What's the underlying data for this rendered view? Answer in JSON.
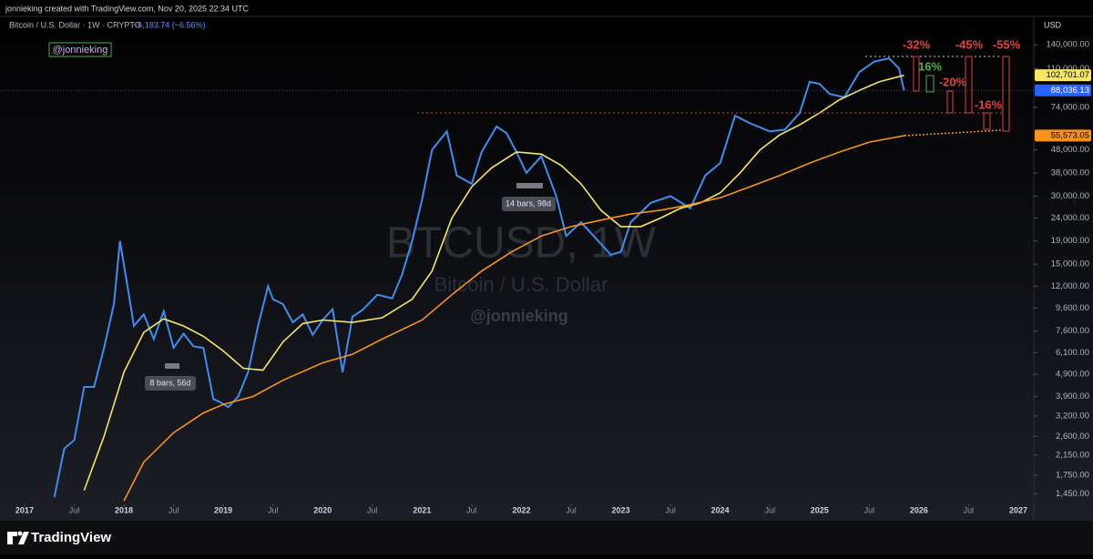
{
  "chart_data": {
    "type": "line",
    "header": "jonnieking created with TradingView.com, Nov 20, 2025 22:34 UTC",
    "symbol_title": "Bitcoin / U.S. Dollar · 1W · CRYPTO",
    "change": "−6,183.74 (−6.56%)",
    "currency": "USD",
    "author_tag": "@jonnieking",
    "watermark": [
      "BTCUSD, 1W",
      "Bitcoin / U.S. Dollar",
      "@jonnieking"
    ],
    "annotations": [
      "-32%",
      "16%",
      "-20%",
      "-45%",
      "-16%",
      "-55%",
      "14 bars, 98d",
      "8 bars, 56d"
    ],
    "footer": "TradingView",
    "log_scale": true,
    "xlim": [
      2016.753,
      2027.156
    ],
    "xticks": [
      2017,
      {
        "value": 2017.5,
        "label": "Jul"
      },
      2018,
      {
        "value": 2018.5,
        "label": "Jul"
      },
      2019,
      {
        "value": 2019.5,
        "label": "Jul"
      },
      2020,
      {
        "value": 2020.5,
        "label": "Jul"
      },
      2021,
      {
        "value": 2021.5,
        "label": "Jul"
      },
      2022,
      {
        "value": 2022.5,
        "label": "Jul"
      },
      2023,
      {
        "value": 2023.5,
        "label": "Jul"
      },
      2024,
      {
        "value": 2024.5,
        "label": "Jul"
      },
      2025,
      {
        "value": 2025.5,
        "label": "Jul"
      },
      2026,
      {
        "value": 2026.5,
        "label": "Jul"
      },
      2027
    ],
    "ylim": [
      1350,
      187000
    ],
    "yticks": [
      {
        "value": 140000,
        "label": "140,000.00"
      },
      {
        "value": 110000,
        "label": "110,000.00"
      },
      {
        "value": 74000,
        "label": "74,000.00"
      },
      {
        "value": 48000,
        "label": "48,000.00"
      },
      {
        "value": 38000,
        "label": "38,000.00"
      },
      {
        "value": 30000,
        "label": "30,000.00"
      },
      {
        "value": 24000,
        "label": "24,000.00"
      },
      {
        "value": 19000,
        "label": "19,000.00"
      },
      {
        "value": 15000,
        "label": "15,000.00"
      },
      {
        "value": 12000,
        "label": "12,000.00"
      },
      {
        "value": 9600,
        "label": "9,600.00"
      },
      {
        "value": 7600,
        "label": "7,600.00"
      },
      {
        "value": 6100,
        "label": "6,100.00"
      },
      {
        "value": 4900,
        "label": "4,900.00"
      },
      {
        "value": 3900,
        "label": "3,900.00"
      },
      {
        "value": 3200,
        "label": "3,200.00"
      },
      {
        "value": 2600,
        "label": "2,600.00"
      },
      {
        "value": 2150,
        "label": "2,150.00"
      },
      {
        "value": 1750,
        "label": "1,750.00"
      },
      {
        "value": 1450,
        "label": "1,450.00"
      }
    ],
    "series": [
      {
        "color": "#3d8ef0",
        "label_bg": "#2962ff",
        "label_fg": "#ffffff",
        "x": [
          2017.3,
          2017.4,
          2017.5,
          2017.6,
          2017.7,
          2017.8,
          2017.9,
          2017.96,
          2018.05,
          2018.1,
          2018.2,
          2018.3,
          2018.4,
          2018.5,
          2018.6,
          2018.7,
          2018.8,
          2018.9,
          2018.96,
          2019.05,
          2019.15,
          2019.25,
          2019.35,
          2019.45,
          2019.5,
          2019.6,
          2019.7,
          2019.8,
          2019.9,
          2020.0,
          2020.1,
          2020.2,
          2020.3,
          2020.4,
          2020.55,
          2020.7,
          2020.8,
          2020.9,
          2021.0,
          2021.1,
          2021.25,
          2021.35,
          2021.5,
          2021.6,
          2021.75,
          2021.85,
          2021.95,
          2022.05,
          2022.2,
          2022.35,
          2022.45,
          2022.6,
          2022.75,
          2022.9,
          2023.0,
          2023.1,
          2023.3,
          2023.5,
          2023.7,
          2023.85,
          2024.0,
          2024.15,
          2024.3,
          2024.5,
          2024.65,
          2024.8,
          2024.9,
          2025.0,
          2025.1,
          2025.25,
          2025.4,
          2025.55,
          2025.7,
          2025.8,
          2025.85
        ],
        "values": [
          1400,
          2300,
          2500,
          4300,
          4300,
          6400,
          10000,
          19000,
          11000,
          8000,
          9000,
          7000,
          9300,
          6400,
          7400,
          6500,
          6400,
          3800,
          3700,
          3500,
          3900,
          5000,
          8000,
          12000,
          10500,
          10000,
          8300,
          9000,
          7300,
          8500,
          9500,
          5000,
          8800,
          9400,
          11000,
          10600,
          13500,
          19000,
          29000,
          48000,
          58000,
          37000,
          34000,
          47000,
          61000,
          57000,
          47000,
          38000,
          45000,
          30000,
          20000,
          23000,
          19500,
          16500,
          17000,
          23000,
          28000,
          30000,
          26500,
          37000,
          42000,
          68000,
          63000,
          58000,
          59000,
          70000,
          96000,
          94000,
          85000,
          82000,
          106000,
          118000,
          122000,
          110000,
          88036.13
        ],
        "value_labels": [
          null,
          null,
          null,
          null,
          null,
          null,
          null,
          null,
          null,
          null,
          null,
          null,
          null,
          null,
          null,
          null,
          null,
          null,
          null,
          null,
          null,
          null,
          null,
          null,
          null,
          null,
          null,
          null,
          null,
          null,
          null,
          null,
          null,
          null,
          null,
          null,
          null,
          null,
          null,
          null,
          null,
          null,
          null,
          null,
          null,
          null,
          null,
          null,
          null,
          null,
          null,
          null,
          null,
          null,
          null,
          null,
          null,
          null,
          null,
          null,
          null,
          null,
          null,
          null,
          null,
          null,
          null,
          null,
          null,
          null,
          null,
          null,
          null,
          null,
          "88,036.13"
        ]
      },
      {
        "color": "#f5e663",
        "label_bg": "#f5e663",
        "label_fg": "#000000",
        "x": [
          2017.6,
          2017.8,
          2018.0,
          2018.2,
          2018.4,
          2018.6,
          2018.8,
          2019.0,
          2019.2,
          2019.4,
          2019.6,
          2019.8,
          2020.0,
          2020.3,
          2020.6,
          2020.9,
          2021.1,
          2021.3,
          2021.5,
          2021.7,
          2021.95,
          2022.2,
          2022.4,
          2022.6,
          2022.8,
          2023.0,
          2023.2,
          2023.4,
          2023.6,
          2023.8,
          2024.0,
          2024.2,
          2024.4,
          2024.6,
          2024.8,
          2025.0,
          2025.2,
          2025.4,
          2025.6,
          2025.85
        ],
        "values": [
          1500,
          2600,
          5000,
          7500,
          8600,
          8000,
          7200,
          6200,
          5200,
          5100,
          6800,
          8200,
          8500,
          8300,
          8700,
          10500,
          14000,
          24000,
          33000,
          40000,
          47000,
          46000,
          41000,
          34000,
          26000,
          22000,
          22000,
          24000,
          26500,
          28000,
          31000,
          38000,
          48000,
          56000,
          62000,
          70000,
          80000,
          88000,
          96000,
          102701.07
        ],
        "value_labels": [
          null,
          null,
          null,
          null,
          null,
          null,
          null,
          null,
          null,
          null,
          null,
          null,
          null,
          null,
          null,
          null,
          null,
          null,
          null,
          null,
          null,
          null,
          null,
          null,
          null,
          null,
          null,
          null,
          null,
          null,
          null,
          null,
          null,
          null,
          null,
          null,
          null,
          null,
          null,
          "102,701.07"
        ]
      },
      {
        "color": "#f7931a",
        "label_bg": "#f7931a",
        "label_fg": "#000000",
        "x": [
          2018.0,
          2018.2,
          2018.5,
          2018.8,
          2019.0,
          2019.3,
          2019.6,
          2020.0,
          2020.3,
          2020.6,
          2021.0,
          2021.3,
          2021.6,
          2021.9,
          2022.2,
          2022.5,
          2022.8,
          2023.1,
          2023.4,
          2023.7,
          2024.0,
          2024.3,
          2024.6,
          2024.9,
          2025.2,
          2025.5,
          2025.86
        ],
        "values": [
          1350,
          2000,
          2700,
          3300,
          3600,
          3900,
          4600,
          5500,
          6000,
          7000,
          8500,
          11000,
          14000,
          17000,
          20000,
          22000,
          23500,
          25000,
          26000,
          27500,
          29500,
          33000,
          37000,
          42000,
          47000,
          52000,
          55573.05
        ],
        "value_labels": [
          null,
          null,
          null,
          null,
          null,
          null,
          null,
          null,
          null,
          null,
          null,
          null,
          null,
          null,
          null,
          null,
          null,
          null,
          null,
          null,
          null,
          null,
          null,
          null,
          null,
          null,
          "55,573.05"
        ]
      }
    ]
  }
}
